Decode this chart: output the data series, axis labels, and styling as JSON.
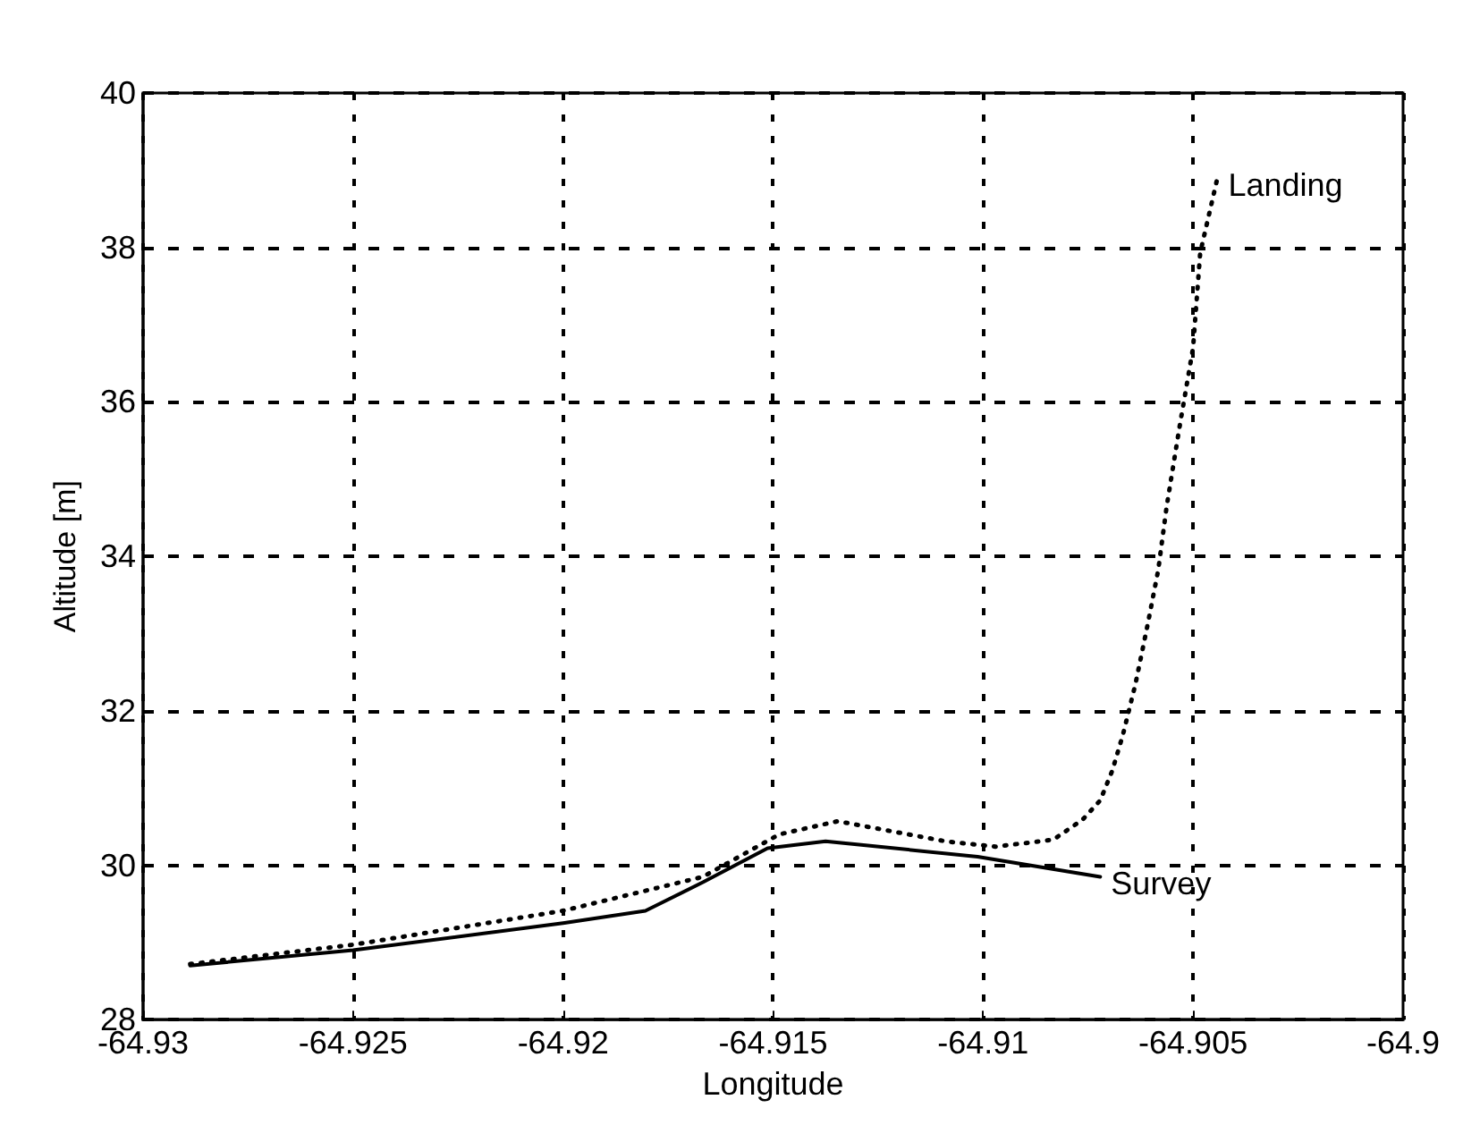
{
  "chart_data": {
    "type": "line",
    "xlabel": "Longitude",
    "ylabel": "Altitude [m]",
    "xlim": [
      -64.93,
      -64.9
    ],
    "xticks": [
      -64.93,
      -64.925,
      -64.92,
      -64.915,
      -64.91,
      -64.905,
      -64.9
    ],
    "ylim": [
      28,
      40
    ],
    "yticks": [
      28,
      30,
      32,
      34,
      36,
      38,
      40
    ],
    "grid": true,
    "legend": false,
    "marker": "none",
    "series": [
      {
        "name": "Survey",
        "color": "#000000",
        "line_style": "solid",
        "x": [
          -64.92888,
          -64.925,
          -64.92,
          -64.91804,
          -64.91667,
          -64.91513,
          -64.91375,
          -64.91013,
          -64.90721
        ],
        "values": [
          28.7,
          28.9,
          29.25,
          29.41,
          29.78,
          30.22,
          30.31,
          30.11,
          29.85
        ]
      },
      {
        "name": "Landing",
        "color": "#000000",
        "line_style": "dotted",
        "x": [
          -64.92888,
          -64.925,
          -64.92,
          -64.91667,
          -64.91485,
          -64.91346,
          -64.9109,
          -64.90971,
          -64.90833,
          -64.90763,
          -64.90721,
          -64.90692,
          -64.90667,
          -64.90637,
          -64.90608,
          -64.90583,
          -64.90563,
          -64.90533,
          -64.905,
          -64.90483,
          -64.90442
        ],
        "values": [
          28.72,
          28.97,
          29.41,
          29.85,
          30.4,
          30.57,
          30.31,
          30.24,
          30.33,
          30.59,
          30.84,
          31.23,
          31.69,
          32.35,
          33.12,
          33.82,
          34.64,
          35.65,
          36.7,
          37.93,
          38.9
        ]
      }
    ]
  }
}
